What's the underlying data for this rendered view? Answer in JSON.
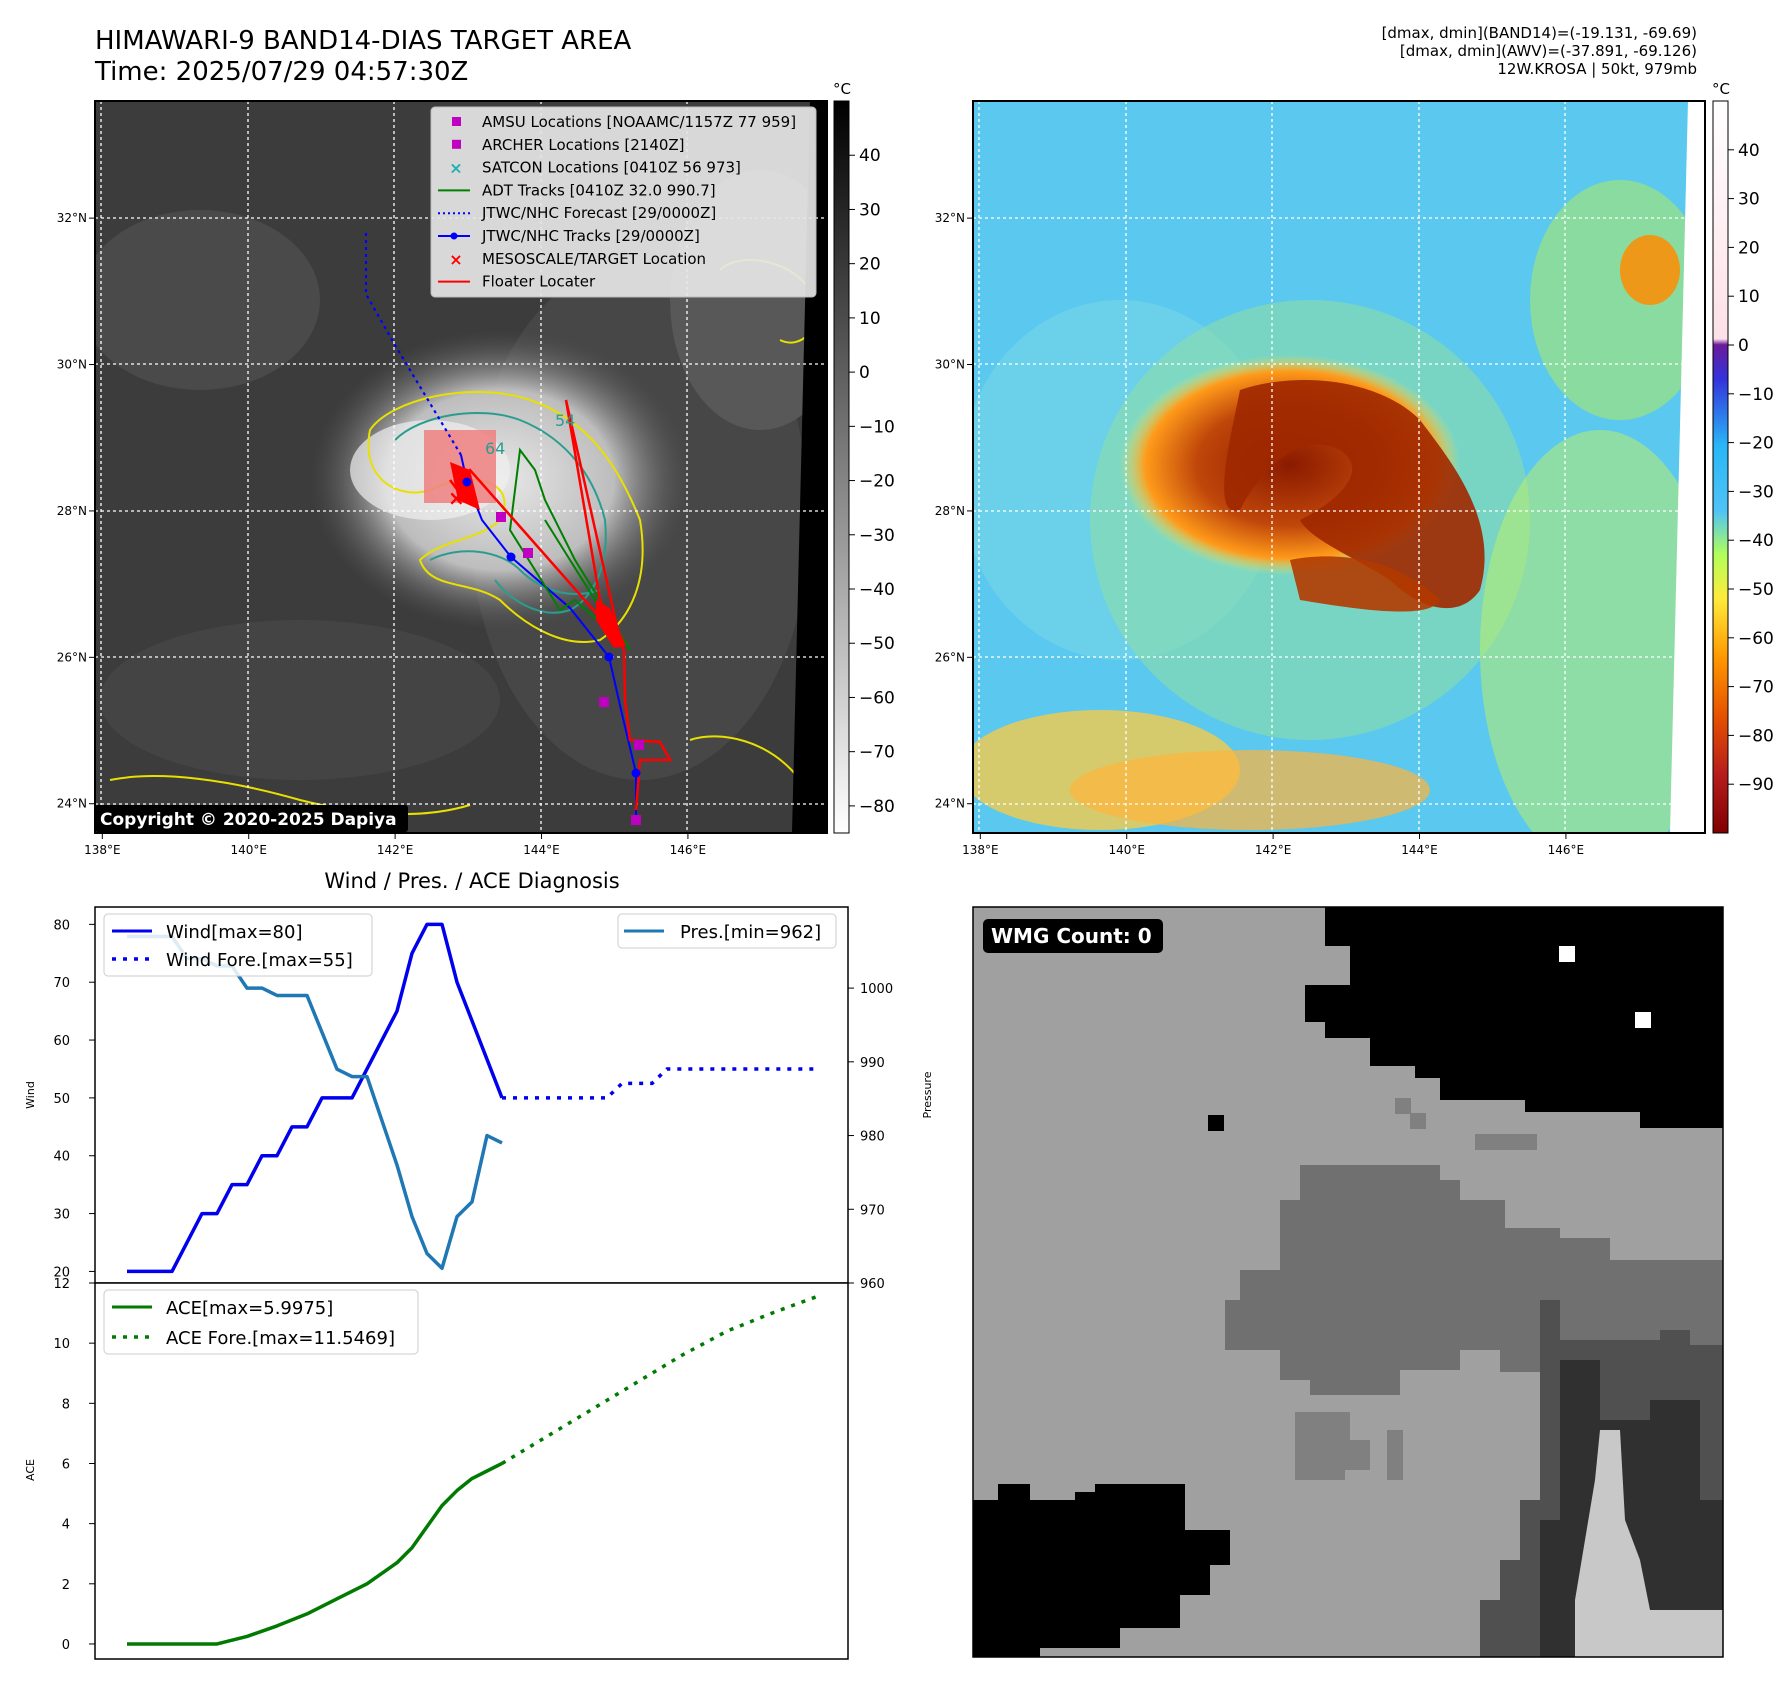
{
  "header": {
    "title": "HIMAWARI-9 BAND14-DIAS TARGET AREA",
    "time": "Time: 2025/07/29 04:57:30Z",
    "info": [
      "[dmax, dmin](BAND14)=(-19.131, -69.69)",
      "[dmax, dmin](AWV)=(-37.891, -69.126)",
      "12W.KROSA | 50kt, 979mb"
    ]
  },
  "colors": {
    "wind": "#0000ee",
    "pressure": "#1f77b4",
    "ace": "#007a00",
    "amsu": "#c000c0",
    "archer": "#c000c0",
    "satcon": "#20b0b0",
    "adt": "#008000",
    "jtwc_forecast": "#0000ff",
    "jtwc_tracks": "#0000ff",
    "target": "#ff0000",
    "floater": "#ff0000"
  },
  "maps": {
    "x_ticks": [
      "138°E",
      "140°E",
      "142°E",
      "144°E",
      "146°E"
    ],
    "y_ticks": [
      "32°N",
      "30°N",
      "28°N",
      "26°N",
      "24°N"
    ],
    "lon_range": [
      137.9,
      147.9
    ],
    "lat_range": [
      23.6,
      33.6
    ],
    "left_cbar": {
      "unit": "°C",
      "ticks": [
        "40",
        "30",
        "20",
        "10",
        "0",
        "−10",
        "−20",
        "−30",
        "−40",
        "−50",
        "−60",
        "−70",
        "−80"
      ],
      "range": [
        -85,
        50
      ]
    },
    "right_cbar": {
      "unit": "°C",
      "ticks": [
        "40",
        "30",
        "20",
        "10",
        "0",
        "−10",
        "−20",
        "−30",
        "−40",
        "−50",
        "−60",
        "−70",
        "−80",
        "−90"
      ],
      "range": [
        -100,
        50
      ]
    },
    "copyright": "Copyright © 2020-2025 Dapiya",
    "legend": [
      {
        "label": "AMSU Locations [NOAAMC/1157Z 77 959]",
        "marker": "square",
        "color": "#c000c0"
      },
      {
        "label": "ARCHER Locations [2140Z]",
        "marker": "square",
        "color": "#c000c0"
      },
      {
        "label": "SATCON Locations [0410Z 56 973]",
        "marker": "x",
        "color": "#20b0b0"
      },
      {
        "label": "ADT Tracks [0410Z 32.0 990.7]",
        "marker": "line",
        "color": "#008000"
      },
      {
        "label": "JTWC/NHC Forecast [29/0000Z]",
        "marker": "dotted",
        "color": "#0000ff"
      },
      {
        "label": "JTWC/NHC Tracks [29/0000Z]",
        "marker": "line-dot",
        "color": "#0000ff"
      },
      {
        "label": "MESOSCALE/TARGET Location",
        "marker": "x",
        "color": "#ff0000"
      },
      {
        "label": "Floater Locater",
        "marker": "line",
        "color": "#ff0000"
      }
    ],
    "contour_labels": [
      "54",
      "64"
    ]
  },
  "chart_data": [
    {
      "type": "line",
      "title": "Wind / Pres. / ACE Diagnosis",
      "ylabel": "Wind",
      "y2label": "Pressure",
      "ylim": [
        18,
        83
      ],
      "y2lim": [
        960,
        1011
      ],
      "yticks": [
        20,
        30,
        40,
        50,
        60,
        70,
        80
      ],
      "y2ticks": [
        960,
        970,
        980,
        990,
        1000
      ],
      "x": [
        0,
        1,
        2,
        3,
        4,
        5,
        6,
        7,
        8,
        9,
        10,
        11,
        12,
        13,
        14,
        15,
        16,
        17,
        18,
        19,
        20,
        21,
        22,
        23,
        24,
        25,
        26,
        27,
        28,
        29,
        30,
        31,
        32,
        33,
        34,
        35,
        36,
        37,
        38,
        39,
        40,
        41,
        42,
        43,
        44,
        45,
        46
      ],
      "series": [
        {
          "name": "Wind[max=80]",
          "axis": "left",
          "style": "solid",
          "x": [
            0,
            3,
            5,
            6,
            7,
            8,
            9,
            10,
            11,
            12,
            13,
            15,
            16,
            18,
            19,
            20,
            21,
            22,
            25
          ],
          "values": [
            20,
            20,
            30,
            30,
            35,
            35,
            40,
            40,
            45,
            45,
            50,
            50,
            55,
            65,
            75,
            80,
            80,
            70,
            50
          ]
        },
        {
          "name": "Wind Fore.[max=55]",
          "axis": "left",
          "style": "dotted",
          "x": [
            25,
            32,
            33,
            35,
            36,
            46
          ],
          "values": [
            50,
            50,
            52.5,
            52.5,
            55,
            55
          ]
        },
        {
          "name": "Pres.[min=962]",
          "axis": "right",
          "style": "solid",
          "x": [
            0,
            3,
            4,
            5,
            6,
            7,
            8,
            9,
            10,
            12,
            13,
            14,
            15,
            16,
            17,
            18,
            19,
            20,
            21,
            22,
            23,
            24,
            25
          ],
          "values": [
            1007,
            1007,
            1004,
            1004,
            1003,
            1003,
            1000,
            1000,
            999,
            999,
            994,
            989,
            988,
            988,
            982,
            976,
            969,
            964,
            962,
            969,
            971,
            980,
            979
          ]
        }
      ]
    },
    {
      "type": "line",
      "ylabel": "ACE",
      "ylim": [
        -0.5,
        12
      ],
      "yticks": [
        0,
        2,
        4,
        6,
        8,
        10,
        12
      ],
      "series": [
        {
          "name": "ACE[max=5.9975]",
          "style": "solid",
          "x": [
            0,
            6,
            8,
            10,
            12,
            14,
            16,
            18,
            19,
            20,
            21,
            22,
            23,
            24,
            25
          ],
          "values": [
            0,
            0,
            0.25,
            0.6,
            1.0,
            1.5,
            2.0,
            2.7,
            3.2,
            3.9,
            4.6,
            5.1,
            5.5,
            5.75,
            6.0
          ]
        },
        {
          "name": "ACE Fore.[max=11.5469]",
          "style": "dotted",
          "x": [
            25,
            28,
            31,
            34,
            37,
            40,
            43,
            46
          ],
          "values": [
            6.0,
            6.9,
            7.8,
            8.7,
            9.6,
            10.4,
            11.0,
            11.55
          ]
        }
      ]
    }
  ],
  "wmg": {
    "label": "WMG Count: 0"
  }
}
